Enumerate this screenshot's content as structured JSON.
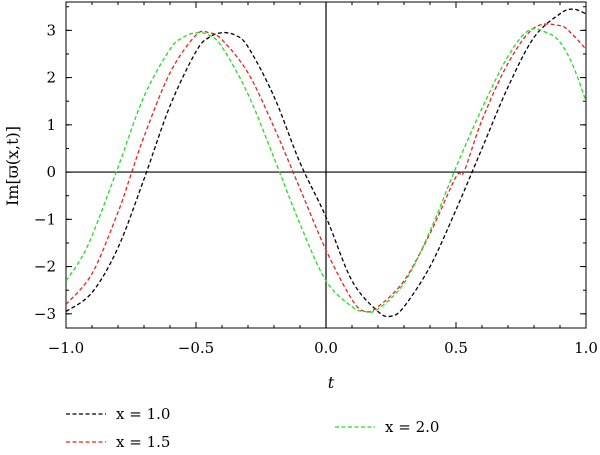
{
  "chart_data": {
    "type": "line",
    "xlabel": "t",
    "ylabel": "Im[ϖ(x,t)]",
    "xlim": [
      -1.0,
      1.0
    ],
    "ylim": [
      -3.3,
      3.6
    ],
    "x_ticks": [
      -1.0,
      -0.5,
      0.0,
      0.5,
      1.0
    ],
    "x_tick_labels": [
      "−1.0",
      "−0.5",
      "0.0",
      "0.5",
      "1.0"
    ],
    "y_ticks": [
      -3,
      -2,
      -1,
      0,
      1,
      2,
      3
    ],
    "y_tick_labels": [
      "−3",
      "−2",
      "−1",
      "0",
      "1",
      "2",
      "3"
    ],
    "grid": false,
    "legend_position": "bottom",
    "series": [
      {
        "name": "x = 1.0",
        "color": "#000000",
        "dash": "dashed",
        "x": [
          -1.0,
          -0.9,
          -0.8,
          -0.7,
          -0.6,
          -0.5,
          -0.45,
          -0.4,
          -0.35,
          -0.3,
          -0.2,
          -0.1,
          0.0,
          0.1,
          0.2,
          0.25,
          0.3,
          0.4,
          0.5,
          0.6,
          0.7,
          0.8,
          0.9,
          0.95,
          1.0
        ],
        "y": [
          -2.95,
          -2.55,
          -1.6,
          -0.15,
          1.4,
          2.55,
          2.85,
          2.95,
          2.9,
          2.65,
          1.6,
          0.2,
          -0.95,
          -2.3,
          -2.95,
          -3.05,
          -2.85,
          -2.0,
          -0.8,
          0.5,
          1.8,
          2.85,
          3.35,
          3.45,
          3.35
        ]
      },
      {
        "name": "x = 1.5",
        "color": "#e8211f",
        "dash": "dashed",
        "x": [
          -1.0,
          -0.9,
          -0.8,
          -0.75,
          -0.7,
          -0.6,
          -0.5,
          -0.45,
          -0.4,
          -0.3,
          -0.2,
          -0.1,
          0.0,
          0.1,
          0.15,
          0.2,
          0.3,
          0.4,
          0.5,
          0.53,
          0.6,
          0.7,
          0.8,
          0.9,
          0.95,
          1.0
        ],
        "y": [
          -2.8,
          -2.15,
          -0.85,
          -0.05,
          0.75,
          2.1,
          2.9,
          2.95,
          2.8,
          2.1,
          0.95,
          -0.35,
          -1.65,
          -2.7,
          -2.95,
          -2.85,
          -2.3,
          -1.3,
          -0.1,
          0.0,
          1.1,
          2.3,
          3.05,
          3.1,
          2.9,
          2.6
        ]
      },
      {
        "name": "x = 2.0",
        "color": "#22dd22",
        "dash": "dashed",
        "x": [
          -1.0,
          -0.95,
          -0.9,
          -0.8,
          -0.7,
          -0.6,
          -0.55,
          -0.5,
          -0.45,
          -0.4,
          -0.3,
          -0.2,
          -0.1,
          0.0,
          0.1,
          0.15,
          0.2,
          0.3,
          0.4,
          0.5,
          0.6,
          0.7,
          0.78,
          0.85,
          0.9,
          0.95,
          1.0
        ],
        "y": [
          -2.3,
          -1.9,
          -1.35,
          0.1,
          1.6,
          2.6,
          2.85,
          2.95,
          2.9,
          2.65,
          1.65,
          0.3,
          -1.1,
          -2.3,
          -2.85,
          -2.95,
          -2.9,
          -2.35,
          -1.25,
          0.1,
          1.35,
          2.45,
          3.0,
          2.95,
          2.75,
          2.25,
          1.5
        ]
      }
    ]
  }
}
